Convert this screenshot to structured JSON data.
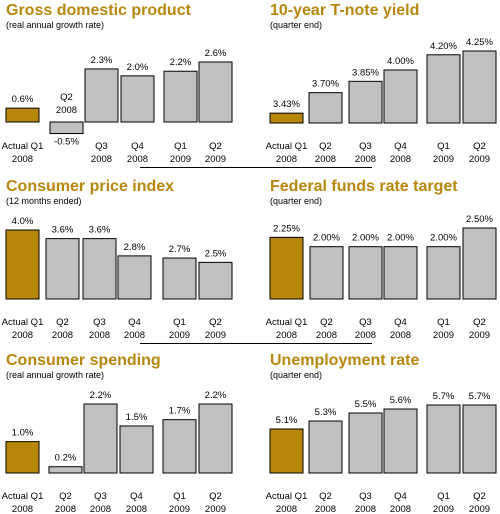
{
  "chart_data": [
    {
      "type": "bar",
      "title": "Gross domestic product",
      "subtitle": "(real annual growth rate)",
      "categories": [
        "Actual Q1 2008",
        "Q2 2008",
        "Q3 2008",
        "Q4 2008",
        "Q1 2009",
        "Q2 2009"
      ],
      "values": [
        0.6,
        -0.5,
        2.3,
        2.0,
        2.2,
        2.6
      ],
      "labels": [
        "0.6%",
        "-0.5%",
        "2.3%",
        "2.0%",
        "2.2%",
        "2.6%"
      ],
      "ylim": [
        -0.5,
        2.6
      ],
      "colors": {
        "actual": "#b8860b",
        "forecast": "#c0c0c0"
      }
    },
    {
      "type": "bar",
      "title": "10-year T-note yield",
      "subtitle": "(quarter end)",
      "categories": [
        "Actual Q1 2008",
        "Q2 2008",
        "Q3 2008",
        "Q4 2008",
        "Q1 2009",
        "Q2 2009"
      ],
      "values": [
        3.43,
        3.7,
        3.85,
        4.0,
        4.2,
        4.25
      ],
      "labels": [
        "3.43%",
        "3.70%",
        "3.85%",
        "4.00%",
        "4.20%",
        "4.25%"
      ],
      "ylim": [
        3.3,
        4.25
      ],
      "colors": {
        "actual": "#b8860b",
        "forecast": "#c0c0c0"
      }
    },
    {
      "type": "bar",
      "title": "Consumer price index",
      "subtitle": "(12 months ended)",
      "categories": [
        "Actual Q1 2008",
        "Q2 2008",
        "Q3 2008",
        "Q4 2008",
        "Q1 2009",
        "Q2 2009"
      ],
      "values": [
        4.0,
        3.6,
        3.6,
        2.8,
        2.7,
        2.5
      ],
      "labels": [
        "4.0%",
        "3.6%",
        "3.6%",
        "2.8%",
        "2.7%",
        "2.5%"
      ],
      "ylim": [
        0.8,
        4.0
      ],
      "colors": {
        "actual": "#b8860b",
        "forecast": "#c0c0c0"
      }
    },
    {
      "type": "bar",
      "title": "Federal funds rate target",
      "subtitle": "(quarter end)",
      "categories": [
        "Actual Q1 2008",
        "Q2 2008",
        "Q3 2008",
        "Q4 2008",
        "Q1 2009",
        "Q2 2009"
      ],
      "values": [
        2.25,
        2.0,
        2.0,
        2.0,
        2.0,
        2.5
      ],
      "labels": [
        "2.25%",
        "2.00%",
        "2.00%",
        "2.00%",
        "2.00%",
        "2.50%"
      ],
      "ylim": [
        0.6,
        2.5
      ],
      "colors": {
        "actual": "#b8860b",
        "forecast": "#c0c0c0"
      }
    },
    {
      "type": "bar",
      "title": "Consumer spending",
      "subtitle": "(real annual growth rate)",
      "categories": [
        "Actual Q1 2008",
        "Q2 2008",
        "Q3 2008",
        "Q4 2008",
        "Q1 2009",
        "Q2 2009"
      ],
      "values": [
        1.0,
        0.2,
        2.2,
        1.5,
        1.7,
        2.2
      ],
      "labels": [
        "1.0%",
        "0.2%",
        "2.2%",
        "1.5%",
        "1.7%",
        "2.2%"
      ],
      "ylim": [
        0,
        2.2
      ],
      "colors": {
        "actual": "#b8860b",
        "forecast": "#c0c0c0"
      }
    },
    {
      "type": "bar",
      "title": "Unemployment rate",
      "subtitle": "(quarter end)",
      "categories": [
        "Actual Q1 2008",
        "Q2 2008",
        "Q3 2008",
        "Q4 2008",
        "Q1 2009",
        "Q2 2009"
      ],
      "values": [
        5.1,
        5.3,
        5.5,
        5.6,
        5.7,
        5.7
      ],
      "labels": [
        "5.1%",
        "5.3%",
        "5.5%",
        "5.6%",
        "5.7%",
        "5.7%"
      ],
      "ylim": [
        4.0,
        5.7
      ],
      "colors": {
        "actual": "#b8860b",
        "forecast": "#c0c0c0"
      }
    }
  ]
}
